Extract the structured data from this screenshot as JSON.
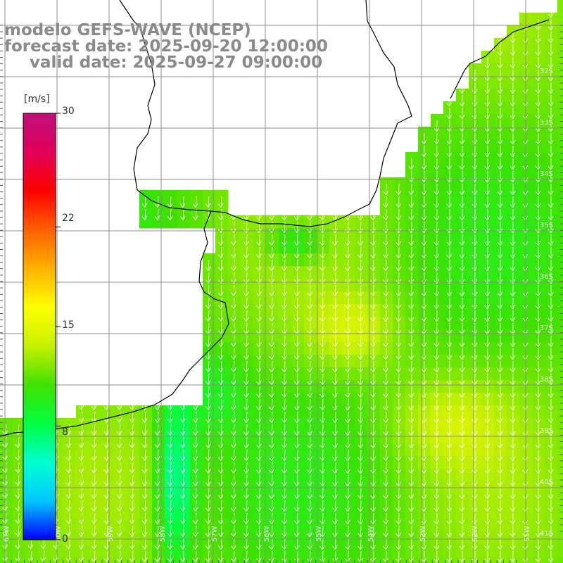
{
  "title": {
    "line1": "modelo GEFS-WAVE (NCEP)",
    "line2": "forecast date: 2025-09-20 12:00:00",
    "line3": "valid date: 2025-09-27 09:00:00"
  },
  "colorbar": {
    "unit": "[m/s]",
    "ticks": [
      {
        "label": "30",
        "value": 30
      },
      {
        "label": "22",
        "value": 22
      },
      {
        "label": "15",
        "value": 15
      },
      {
        "label": "8",
        "value": 8
      },
      {
        "label": "0",
        "value": 0
      }
    ],
    "stops": [
      "#0000ff",
      "#00c8ff",
      "#00ffd0",
      "#00ff40",
      "#40e000",
      "#c8f000",
      "#ffff00",
      "#ffb000",
      "#ff6000",
      "#ff0000",
      "#e0005a",
      "#c0107a"
    ]
  },
  "lat_labels": [
    "32S",
    "33S",
    "34S",
    "35S",
    "36S",
    "37S",
    "38S",
    "39S",
    "40S",
    "41S"
  ],
  "lon_labels": [
    "61W",
    "60W",
    "59W",
    "58W",
    "57W",
    "56W",
    "55W",
    "54W",
    "53W",
    "52W",
    "51W"
  ],
  "colors": {
    "grid": "#8c8c8c",
    "coast": "#000000",
    "arrow": "#ffffff"
  }
}
